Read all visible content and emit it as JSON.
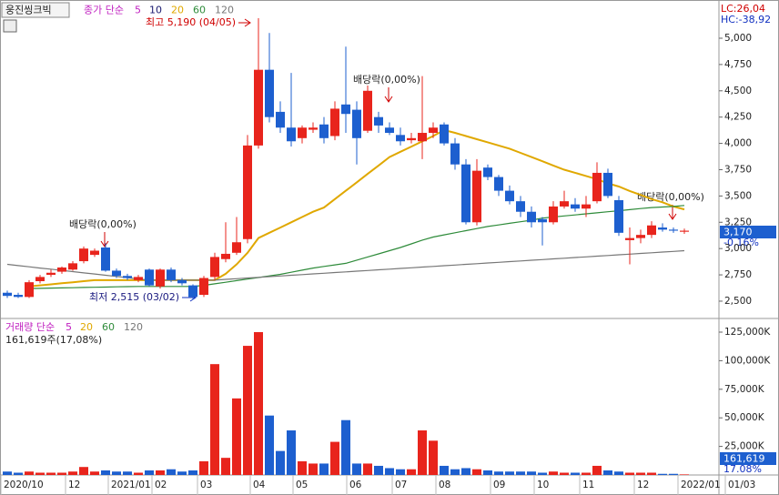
{
  "stock_name": "웅진씽크빅",
  "chart_data": {
    "type": "candlestick",
    "up_color": "#e8241c",
    "down_color": "#1d5fcf",
    "price_legend_label": "종가 단순",
    "extra_legend": [
      {
        "name": "5",
        "color": "#c020c0"
      },
      {
        "name": "10",
        "color": "#1a1a70"
      }
    ],
    "ma_series": [
      {
        "name": "20",
        "color": "#e0a800",
        "values": [
          null,
          null,
          2640,
          2650,
          2660,
          2670,
          2680,
          2690,
          2700,
          2700,
          2700,
          2700,
          2700,
          2700,
          2700,
          2700,
          2700,
          2700,
          2700,
          2700,
          2760,
          2850,
          2960,
          3100,
          3150,
          3200,
          3250,
          3300,
          3350,
          3390,
          3470,
          3550,
          3630,
          3710,
          3790,
          3870,
          3920,
          3970,
          4020,
          4070,
          4126,
          4100,
          4070,
          4040,
          4010,
          3980,
          3950,
          3910,
          3870,
          3830,
          3790,
          3750,
          3720,
          3690,
          3660,
          3620,
          3590,
          3547,
          3510,
          3470,
          3440,
          3400,
          3373
        ]
      },
      {
        "name": "60",
        "color": "#2e8b3a",
        "values": [
          null,
          null,
          2620,
          2622,
          2624,
          2626,
          2628,
          2630,
          2632,
          2634,
          2636,
          2638,
          2640,
          2640,
          2640,
          2640,
          2640,
          2640,
          2650,
          2665,
          2680,
          2695,
          2710,
          2725,
          2740,
          2755,
          2775,
          2795,
          2815,
          2830,
          2845,
          2860,
          2890,
          2920,
          2950,
          2980,
          3010,
          3045,
          3080,
          3110,
          3130,
          3150,
          3170,
          3190,
          3210,
          3225,
          3240,
          3255,
          3270,
          3290,
          3300,
          3310,
          3320,
          3330,
          3340,
          3350,
          3360,
          3370,
          3380,
          3390,
          3395,
          3400,
          3410
        ]
      },
      {
        "name": "120",
        "color": "#777777",
        "values": [
          2850,
          2838,
          2827,
          2815,
          2804,
          2792,
          2781,
          2769,
          2758,
          2746,
          2735,
          2723,
          2712,
          2700,
          2700,
          2700,
          2700,
          2700,
          2700,
          2700,
          2707,
          2713,
          2720,
          2726,
          2733,
          2739,
          2746,
          2752,
          2759,
          2765,
          2772,
          2778,
          2785,
          2791,
          2798,
          2804,
          2811,
          2817,
          2824,
          2830,
          2837,
          2843,
          2850,
          2856,
          2863,
          2869,
          2876,
          2882,
          2889,
          2895,
          2902,
          2908,
          2915,
          2921,
          2928,
          2934,
          2941,
          2947,
          2954,
          2960,
          2967,
          2973,
          2980
        ]
      }
    ],
    "candles": [
      [
        2580,
        2600,
        2530,
        2550
      ],
      [
        2560,
        2580,
        2530,
        2540
      ],
      [
        2540,
        2700,
        2530,
        2680
      ],
      [
        2690,
        2750,
        2670,
        2730
      ],
      [
        2750,
        2800,
        2730,
        2770
      ],
      [
        2780,
        2830,
        2760,
        2820
      ],
      [
        2800,
        2880,
        2790,
        2860
      ],
      [
        2880,
        3020,
        2860,
        3000
      ],
      [
        2940,
        3000,
        2920,
        2980
      ],
      [
        3010,
        3050,
        2780,
        2790
      ],
      [
        2790,
        2810,
        2720,
        2740
      ],
      [
        2740,
        2760,
        2700,
        2720
      ],
      [
        2700,
        2750,
        2680,
        2730
      ],
      [
        2800,
        2810,
        2640,
        2650
      ],
      [
        2640,
        2810,
        2620,
        2800
      ],
      [
        2800,
        2820,
        2680,
        2700
      ],
      [
        2700,
        2720,
        2650,
        2670
      ],
      [
        2650,
        2660,
        2515,
        2540
      ],
      [
        2560,
        2740,
        2540,
        2720
      ],
      [
        2730,
        2960,
        2700,
        2920
      ],
      [
        2900,
        3250,
        2870,
        2950
      ],
      [
        2960,
        3300,
        2940,
        3060
      ],
      [
        3090,
        4080,
        3050,
        3980
      ],
      [
        3980,
        5190,
        3950,
        4700
      ],
      [
        4700,
        5050,
        4200,
        4250
      ],
      [
        4300,
        4400,
        4100,
        4150
      ],
      [
        4150,
        4670,
        3970,
        4020
      ],
      [
        4050,
        4170,
        4000,
        4150
      ],
      [
        4130,
        4200,
        4100,
        4150
      ],
      [
        4180,
        4250,
        4000,
        4050
      ],
      [
        4070,
        4400,
        4030,
        4330
      ],
      [
        4370,
        4920,
        4100,
        4280
      ],
      [
        4320,
        4400,
        3800,
        4050
      ],
      [
        4120,
        4550,
        4100,
        4500
      ],
      [
        4250,
        4300,
        4100,
        4170
      ],
      [
        4150,
        4200,
        4080,
        4100
      ],
      [
        4080,
        4150,
        3980,
        4020
      ],
      [
        4030,
        4100,
        4000,
        4050
      ],
      [
        4020,
        4640,
        3850,
        4100
      ],
      [
        4100,
        4200,
        4050,
        4150
      ],
      [
        4180,
        4200,
        3980,
        4000
      ],
      [
        4000,
        4050,
        3750,
        3800
      ],
      [
        3800,
        3850,
        3230,
        3250
      ],
      [
        3250,
        3850,
        3220,
        3740
      ],
      [
        3770,
        3800,
        3650,
        3680
      ],
      [
        3680,
        3700,
        3500,
        3550
      ],
      [
        3550,
        3600,
        3420,
        3450
      ],
      [
        3450,
        3500,
        3300,
        3350
      ],
      [
        3350,
        3400,
        3200,
        3250
      ],
      [
        3280,
        3300,
        3030,
        3250
      ],
      [
        3250,
        3450,
        3230,
        3400
      ],
      [
        3400,
        3550,
        3380,
        3450
      ],
      [
        3420,
        3480,
        3350,
        3380
      ],
      [
        3380,
        3500,
        3300,
        3420
      ],
      [
        3450,
        3820,
        3430,
        3720
      ],
      [
        3720,
        3760,
        3480,
        3500
      ],
      [
        3460,
        3500,
        3120,
        3150
      ],
      [
        3080,
        3200,
        2850,
        3100
      ],
      [
        3100,
        3180,
        3050,
        3130
      ],
      [
        3130,
        3260,
        3100,
        3220
      ],
      [
        3200,
        3240,
        3160,
        3180
      ],
      [
        3180,
        3200,
        3150,
        3170
      ],
      [
        3160,
        3190,
        3140,
        3170
      ]
    ],
    "volumes": [
      3000,
      2000,
      3000,
      2000,
      2000,
      2000,
      3000,
      7000,
      3000,
      4000,
      3000,
      3000,
      2000,
      4000,
      4000,
      5000,
      3000,
      4000,
      12000,
      97000,
      15000,
      67000,
      113000,
      125000,
      52000,
      21000,
      39000,
      12000,
      10000,
      10000,
      29000,
      48000,
      10000,
      10000,
      8000,
      6000,
      5000,
      5000,
      39000,
      30000,
      8000,
      5000,
      6000,
      5000,
      4000,
      3000,
      3000,
      3000,
      3000,
      2000,
      3000,
      2000,
      2000,
      2000,
      8000,
      4000,
      3000,
      2000,
      2000,
      2000,
      1000,
      1000,
      500
    ],
    "ylim": [
      2344,
      5346
    ],
    "yticks": [
      {
        "value": 2500,
        "label": "2,500"
      },
      {
        "value": 2750,
        "label": "2,750"
      },
      {
        "value": 3000,
        "label": "3,000"
      },
      {
        "value": 3250,
        "label": "3,250"
      },
      {
        "value": 3500,
        "label": "3,500"
      },
      {
        "value": 3750,
        "label": "3,750"
      },
      {
        "value": 4000,
        "label": "4,000"
      },
      {
        "value": 4250,
        "label": "4,250"
      },
      {
        "value": 4500,
        "label": "4,500"
      },
      {
        "value": 4750,
        "label": "4,750"
      },
      {
        "value": 5000,
        "label": "5,000"
      }
    ],
    "volume_ylim": [
      0,
      135350
    ],
    "volume_yticks": [
      {
        "value": 25000,
        "label": "25,000K"
      },
      {
        "value": 50000,
        "label": "50,000K"
      },
      {
        "value": 75000,
        "label": "75,000K"
      },
      {
        "value": 100000,
        "label": "100,000K"
      },
      {
        "value": 125000,
        "label": "125,000K"
      }
    ],
    "x_tick_labels": [
      "2020/10",
      "12",
      "2021/01",
      "02",
      "03",
      "04",
      "05",
      "06",
      "07",
      "08",
      "09",
      "10",
      "11",
      "12",
      "2022/01",
      "01/03"
    ],
    "volume_legend_label": "거래량 단순",
    "volume_legend": [
      {
        "name": "5",
        "color": "#c020c0"
      },
      {
        "name": "20",
        "color": "#e0a800"
      },
      {
        "name": "60",
        "color": "#2e8b3a"
      },
      {
        "name": "120",
        "color": "#777777"
      }
    ],
    "annotations": {
      "high": "최고 5,190 (04/05)",
      "low": "최저 2,515 (03/02)",
      "dividend": [
        "배당락(0,00%)",
        "배당락(0,00%)",
        "배당락(0,00%)"
      ]
    },
    "lc": "LC:26,04",
    "hc": "HC:-38,92",
    "last_price": "3,170",
    "last_change": "-0.16%",
    "volume_info": "161,619주(17,08%)",
    "last_volume": "161,619",
    "last_volume_pct": "17.08%"
  }
}
